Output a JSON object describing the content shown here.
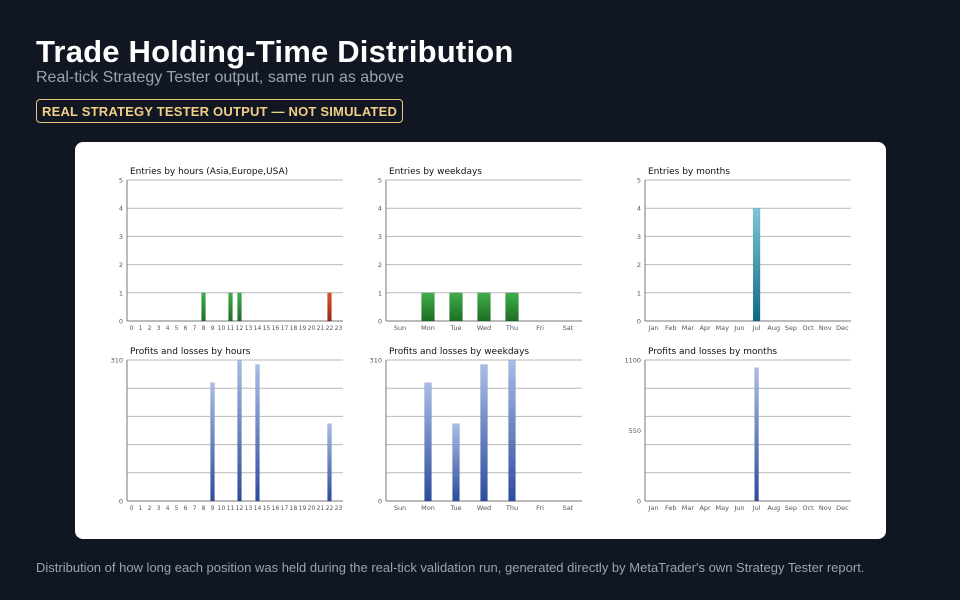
{
  "page": {
    "title": "Trade Holding-Time Distribution",
    "subtitle": "Real-tick Strategy Tester output, same run as above",
    "badge": "REAL STRATEGY TESTER OUTPUT — NOT SIMULATED",
    "footer": "Distribution of how long each position was held during the real-tick validation run, generated directly by MetaTrader's own Strategy Tester report."
  },
  "colors": {
    "background": "#111722",
    "badge": "#e8c37a",
    "green_bar": "#1f7a1f",
    "red_bar": "#b03a1a",
    "teal_bar": "#2aa0b0",
    "blue_bar": "#4a6fc4"
  },
  "chart_data": [
    {
      "type": "bar",
      "title": "Entries by hours (Asia,Europe,USA)",
      "categories": [
        "0",
        "1",
        "2",
        "3",
        "4",
        "5",
        "6",
        "7",
        "8",
        "9",
        "10",
        "11",
        "12",
        "13",
        "14",
        "15",
        "16",
        "17",
        "18",
        "19",
        "20",
        "21",
        "22",
        "23"
      ],
      "values": [
        0,
        0,
        0,
        0,
        0,
        0,
        0,
        0,
        1,
        0,
        0,
        1,
        1,
        0,
        0,
        0,
        0,
        0,
        0,
        0,
        0,
        0,
        1,
        0
      ],
      "ylim": [
        0,
        5
      ],
      "yticks": [
        "0",
        "1",
        "2",
        "3",
        "4",
        "5"
      ],
      "grid": true
    },
    {
      "type": "bar",
      "title": "Entries by weekdays",
      "categories": [
        "Sun",
        "Mon",
        "Tue",
        "Wed",
        "Thu",
        "Fri",
        "Sat"
      ],
      "values": [
        0,
        1,
        1,
        1,
        1,
        0,
        0
      ],
      "ylim": [
        0,
        5
      ],
      "yticks": [
        "0",
        "1",
        "2",
        "3",
        "4",
        "5"
      ],
      "grid": true
    },
    {
      "type": "bar",
      "title": "Entries by months",
      "categories": [
        "Jan",
        "Feb",
        "Mar",
        "Apr",
        "May",
        "Jun",
        "Jul",
        "Aug",
        "Sep",
        "Oct",
        "Nov",
        "Dec"
      ],
      "values": [
        0,
        0,
        0,
        0,
        0,
        0,
        4,
        0,
        0,
        0,
        0,
        0
      ],
      "ylim": [
        0,
        5
      ],
      "yticks": [
        "0",
        "1",
        "2",
        "3",
        "4",
        "5"
      ],
      "grid": true
    },
    {
      "type": "bar",
      "title": "Profits and losses by hours",
      "categories": [
        "0",
        "1",
        "2",
        "3",
        "4",
        "5",
        "6",
        "7",
        "8",
        "9",
        "10",
        "11",
        "12",
        "13",
        "14",
        "15",
        "16",
        "17",
        "18",
        "19",
        "20",
        "21",
        "22",
        "23"
      ],
      "values": [
        0,
        0,
        0,
        0,
        0,
        0,
        0,
        0,
        0,
        260,
        0,
        0,
        310,
        0,
        300,
        0,
        0,
        0,
        0,
        0,
        0,
        0,
        170,
        0
      ],
      "ylim": [
        0,
        310
      ],
      "yticks": [
        "0",
        "310"
      ],
      "grid": true
    },
    {
      "type": "bar",
      "title": "Profits and losses by weekdays",
      "categories": [
        "Sun",
        "Mon",
        "Tue",
        "Wed",
        "Thu",
        "Fri",
        "Sat"
      ],
      "values": [
        0,
        260,
        170,
        300,
        310,
        0,
        0
      ],
      "ylim": [
        0,
        310
      ],
      "yticks": [
        "0",
        "310"
      ],
      "grid": true
    },
    {
      "type": "bar",
      "title": "Profits and losses by months",
      "categories": [
        "Jan",
        "Feb",
        "Mar",
        "Apr",
        "May",
        "Jun",
        "Jul",
        "Aug",
        "Sep",
        "Oct",
        "Nov",
        "Dec"
      ],
      "values": [
        0,
        0,
        0,
        0,
        0,
        0,
        1040,
        0,
        0,
        0,
        0,
        0
      ],
      "ylim": [
        0,
        1100
      ],
      "yticks": [
        "0",
        "550",
        "1100"
      ],
      "grid": true
    }
  ]
}
